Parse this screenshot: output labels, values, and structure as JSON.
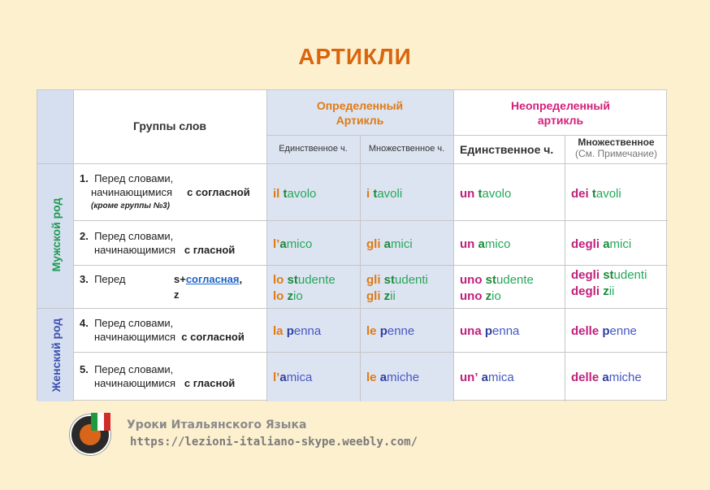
{
  "title": "АРТИКЛИ",
  "header": {
    "groups": "Группы  слов",
    "definite": [
      "Определенный",
      "Артикль"
    ],
    "indefinite": [
      "Неопределенный",
      "артикль"
    ],
    "def_singular": "Единственное ч.",
    "def_plural": "Множественное ч.",
    "indef_singular": "Единственное ч.",
    "indef_plural": "Множественное",
    "indef_plural_note": "(См. Примечание)"
  },
  "side": {
    "masculine": "Мужской  род",
    "feminine": "Женский род"
  },
  "rows": [
    {
      "num": "1.",
      "line1": "Перед словами,",
      "line2a": "начинающимися",
      "line2b": "с согласной",
      "line3": "(кроме группы №3)",
      "def_s": {
        "art": "il",
        "first": "t",
        "rest": "avolo"
      },
      "def_p": {
        "art": "i",
        "first": "t",
        "rest": "avoli"
      },
      "ind_s": {
        "art": "un",
        "first": "t",
        "rest": "avolo"
      },
      "ind_p": {
        "art": "dei",
        "first": "t",
        "rest": "avoli"
      }
    },
    {
      "num": "2.",
      "line1": "Перед словами,",
      "line2a": "начинающимися",
      "line2b": "с  гласной",
      "def_s": {
        "art": "l’",
        "first": "a",
        "rest": "mico"
      },
      "def_p": {
        "art": "gli",
        "first": "a",
        "rest": "mici"
      },
      "ind_s": {
        "art": "un",
        "first": "a",
        "rest": "mico"
      },
      "ind_p": {
        "art": "degli",
        "first": "a",
        "rest": "mici"
      }
    },
    {
      "num": "3.",
      "line1": "Перед",
      "cond_prefix": "s+",
      "cond_link": "согласная",
      "cond_suffix": ",",
      "cond_z": "z",
      "def_s": [
        {
          "art": "lo",
          "first": "st",
          "rest": "udente"
        },
        {
          "art": "lo",
          "first": "z",
          "rest": "io"
        }
      ],
      "def_p": [
        {
          "art": "gli",
          "first": "st",
          "rest": "udenti"
        },
        {
          "art": "gli",
          "first": "z",
          "rest": "ii"
        }
      ],
      "ind_s": [
        {
          "art": "uno",
          "first": "st",
          "rest": "udente"
        },
        {
          "art": "uno",
          "first": "z",
          "rest": "io"
        }
      ],
      "ind_p": [
        {
          "art": "degli",
          "first": "st",
          "rest": "udenti"
        },
        {
          "art": "degli",
          "first": "z",
          "rest": "ii"
        }
      ]
    },
    {
      "num": "4.",
      "line1": "Перед словами,",
      "line2a": "начинающимися",
      "line2b": "с согласной",
      "def_s": {
        "art": "la",
        "first": "p",
        "rest": "enna"
      },
      "def_p": {
        "art": "le",
        "first": "p",
        "rest": "enne"
      },
      "ind_s": {
        "art": "una",
        "first": "p",
        "rest": "enna"
      },
      "ind_p": {
        "art": "delle",
        "first": "p",
        "rest": "enne"
      }
    },
    {
      "num": "5.",
      "line1": "Перед словами,",
      "line2a": "начинающимися",
      "line2b": "с гласной",
      "def_s": {
        "art": "l’",
        "first": "a",
        "rest": "mica"
      },
      "def_p": {
        "art": "le",
        "first": "a",
        "rest": "miche"
      },
      "ind_s": {
        "art": "un’",
        "first": "a",
        "rest": "mica"
      },
      "ind_p": {
        "art": "delle",
        "first": "a",
        "rest": "miche"
      }
    }
  ],
  "footer": {
    "name": "Уроки Итальянского Языка",
    "url": "https://lezioni-italiano-skype.weebly.com/"
  }
}
